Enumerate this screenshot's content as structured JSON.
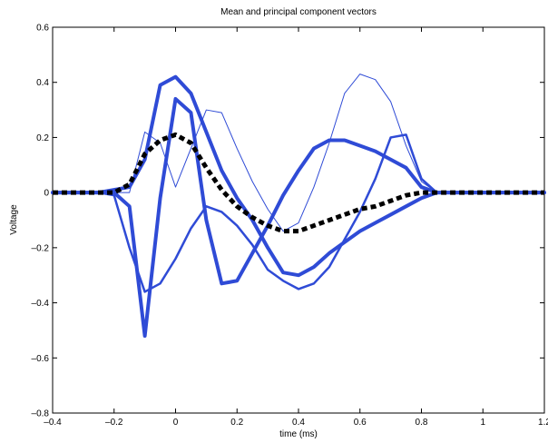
{
  "chart_data": {
    "type": "line",
    "title": "Mean and principal component vectors",
    "xlabel": "time (ms)",
    "ylabel": "Voltage",
    "xlim": [
      -0.4,
      1.2
    ],
    "ylim": [
      -0.8,
      0.6
    ],
    "x_ticks": [
      "-0.4",
      "-0.2",
      "0",
      "0.2",
      "0.4",
      "0.6",
      "0.8",
      "1",
      "1.2"
    ],
    "y_ticks": [
      "-0.8",
      "-0.6",
      "-0.4",
      "-0.2",
      "0",
      "0.2",
      "0.4",
      "0.6"
    ],
    "grid": false,
    "series": [
      {
        "color": "#2f4bd6",
        "style": "solid",
        "weight": "heavy",
        "x": [
          -0.4,
          -0.35,
          -0.3,
          -0.25,
          -0.2,
          -0.15,
          -0.1,
          -0.05,
          0.0,
          0.05,
          0.1,
          0.15,
          0.2,
          0.25,
          0.3,
          0.35,
          0.4,
          0.45,
          0.5,
          0.55,
          0.6,
          0.65,
          0.7,
          0.75,
          0.8,
          0.85,
          0.9,
          1.2
        ],
        "y": [
          0.0,
          0.0,
          0.0,
          0.0,
          0.01,
          0.02,
          0.12,
          0.39,
          0.42,
          0.36,
          0.22,
          0.08,
          -0.02,
          -0.1,
          -0.2,
          -0.29,
          -0.3,
          -0.27,
          -0.22,
          -0.18,
          -0.14,
          -0.11,
          -0.08,
          -0.05,
          -0.02,
          0.0,
          0.0,
          0.0
        ]
      },
      {
        "color": "#2f4bd6",
        "style": "solid",
        "weight": "heavy",
        "x": [
          -0.4,
          -0.35,
          -0.3,
          -0.25,
          -0.2,
          -0.15,
          -0.1,
          -0.05,
          0.0,
          0.05,
          0.1,
          0.15,
          0.2,
          0.25,
          0.3,
          0.35,
          0.4,
          0.45,
          0.5,
          0.55,
          0.6,
          0.65,
          0.7,
          0.75,
          0.8,
          0.85,
          0.9,
          1.2
        ],
        "y": [
          0.0,
          0.0,
          0.0,
          0.0,
          0.0,
          -0.05,
          -0.52,
          -0.02,
          0.34,
          0.29,
          -0.1,
          -0.33,
          -0.32,
          -0.22,
          -0.12,
          -0.01,
          0.08,
          0.16,
          0.19,
          0.19,
          0.17,
          0.15,
          0.12,
          0.09,
          0.02,
          0.0,
          0.0,
          0.0
        ]
      },
      {
        "color": "#2f4bd6",
        "style": "solid",
        "weight": "medium",
        "x": [
          -0.4,
          -0.35,
          -0.3,
          -0.25,
          -0.2,
          -0.15,
          -0.1,
          -0.05,
          0.0,
          0.05,
          0.1,
          0.15,
          0.2,
          0.25,
          0.3,
          0.35,
          0.4,
          0.45,
          0.5,
          0.55,
          0.6,
          0.65,
          0.7,
          0.75,
          0.8,
          0.85,
          0.9,
          1.2
        ],
        "y": [
          0.0,
          0.0,
          0.0,
          0.0,
          -0.01,
          -0.2,
          -0.36,
          -0.33,
          -0.24,
          -0.13,
          -0.05,
          -0.07,
          -0.12,
          -0.19,
          -0.28,
          -0.32,
          -0.35,
          -0.33,
          -0.27,
          -0.17,
          -0.07,
          0.05,
          0.2,
          0.21,
          0.05,
          0.0,
          0.0,
          0.0
        ]
      },
      {
        "color": "#2f4bd6",
        "style": "solid",
        "weight": "thin",
        "x": [
          -0.4,
          -0.35,
          -0.3,
          -0.25,
          -0.2,
          -0.15,
          -0.1,
          -0.05,
          0.0,
          0.05,
          0.1,
          0.15,
          0.2,
          0.25,
          0.3,
          0.35,
          0.4,
          0.45,
          0.5,
          0.55,
          0.6,
          0.65,
          0.7,
          0.75,
          0.8,
          0.85,
          0.9,
          1.2
        ],
        "y": [
          0.0,
          0.0,
          0.0,
          0.0,
          0.0,
          0.0,
          0.22,
          0.18,
          0.02,
          0.16,
          0.3,
          0.29,
          0.16,
          0.04,
          -0.06,
          -0.14,
          -0.11,
          0.02,
          0.18,
          0.36,
          0.43,
          0.41,
          0.33,
          0.17,
          0.04,
          0.0,
          0.0,
          0.0
        ]
      },
      {
        "color": "#000000",
        "style": "dotted",
        "weight": "heavy",
        "x": [
          -0.4,
          -0.35,
          -0.3,
          -0.25,
          -0.2,
          -0.15,
          -0.1,
          -0.05,
          0.0,
          0.05,
          0.1,
          0.15,
          0.2,
          0.25,
          0.3,
          0.35,
          0.4,
          0.45,
          0.5,
          0.55,
          0.6,
          0.65,
          0.7,
          0.75,
          0.8,
          0.85,
          0.9,
          1.2
        ],
        "y": [
          0.0,
          0.0,
          0.0,
          0.0,
          0.0,
          0.03,
          0.14,
          0.19,
          0.21,
          0.18,
          0.09,
          0.01,
          -0.05,
          -0.09,
          -0.12,
          -0.14,
          -0.14,
          -0.12,
          -0.1,
          -0.08,
          -0.06,
          -0.05,
          -0.03,
          -0.01,
          0.0,
          0.0,
          0.0,
          0.0
        ]
      }
    ]
  }
}
